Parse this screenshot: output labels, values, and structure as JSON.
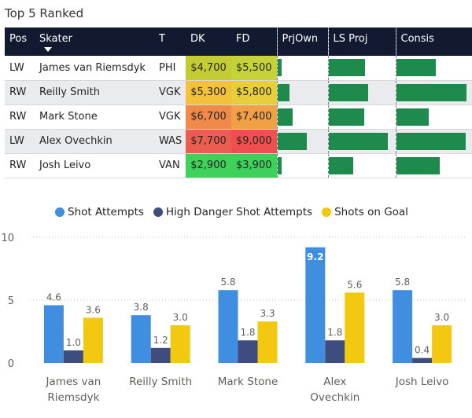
{
  "table": {
    "title": "Top 5 Ranked",
    "headers": {
      "pos": "Pos",
      "skater": "Skater",
      "team": "T",
      "dk": "DK",
      "fd": "FD",
      "prjown": "PrjOwn",
      "lsproj": "LS Proj",
      "consis": "Consis"
    },
    "rows": [
      {
        "pos": "LW",
        "skater": "James van Riemsdyk",
        "team": "PHI",
        "dk": "$4,700",
        "fd": "$5,500",
        "dk_color": "#c3cd33",
        "fd_color": "#c6d23a",
        "prjown": 0.08,
        "lsproj": 0.58,
        "consis": 0.55
      },
      {
        "pos": "RW",
        "skater": "Reilly Smith",
        "team": "VGK",
        "dk": "$5,300",
        "fd": "$5,800",
        "dk_color": "#f2c23a",
        "fd_color": "#e6cf3a",
        "prjown": 0.25,
        "lsproj": 0.62,
        "consis": 0.98
      },
      {
        "pos": "RW",
        "skater": "Mark Stone",
        "team": "VGK",
        "dk": "$6,700",
        "fd": "$7,400",
        "dk_color": "#f08a4b",
        "fd_color": "#f1a045",
        "prjown": 0.32,
        "lsproj": 0.56,
        "consis": 0.45
      },
      {
        "pos": "LW",
        "skater": "Alex Ovechkin",
        "team": "WAS",
        "dk": "$7,700",
        "fd": "$9,000",
        "dk_color": "#ec5d51",
        "fd_color": "#ef4f4f",
        "prjown": 0.62,
        "lsproj": 0.94,
        "consis": 0.97
      },
      {
        "pos": "RW",
        "skater": "Josh Leivo",
        "team": "VAN",
        "dk": "$2,900",
        "fd": "$3,900",
        "dk_color": "#40d15a",
        "fd_color": "#3dd15b",
        "prjown": 0.08,
        "lsproj": 0.39,
        "consis": 0.6
      }
    ]
  },
  "chart_data": {
    "type": "bar",
    "categories": [
      "James van Riemsdyk",
      "Reilly Smith",
      "Mark Stone",
      "Alex Ovechkin",
      "Josh Leivo"
    ],
    "category_lines": [
      [
        "James van",
        "Riemsdyk"
      ],
      [
        "Reilly Smith"
      ],
      [
        "Mark Stone"
      ],
      [
        "Alex",
        "Ovechkin"
      ],
      [
        "Josh Leivo"
      ]
    ],
    "series": [
      {
        "name": "Shot Attempts",
        "color": "#3f8ee0",
        "values": [
          4.6,
          3.8,
          5.8,
          9.2,
          5.8
        ],
        "labels": [
          "4.6",
          "3.8",
          "5.8",
          "9.2",
          "5.8"
        ]
      },
      {
        "name": "High Danger Shot Attempts",
        "color": "#3d4d7e",
        "values": [
          1.0,
          1.2,
          1.8,
          1.8,
          0.4
        ],
        "labels": [
          "1.0",
          "1.2",
          "1.8",
          "1.8",
          "0.4"
        ]
      },
      {
        "name": "Shots on Goal",
        "color": "#f2c811",
        "values": [
          3.6,
          3.0,
          3.3,
          5.6,
          3.0
        ],
        "labels": [
          "3.6",
          "3.0",
          "3.3",
          "5.6",
          "3.0"
        ]
      }
    ],
    "ylim": [
      0,
      10
    ],
    "yticks": [
      0,
      5,
      10
    ],
    "ytick_labels": [
      "0",
      "5",
      "10"
    ],
    "grid": true,
    "legend_position": "top"
  }
}
